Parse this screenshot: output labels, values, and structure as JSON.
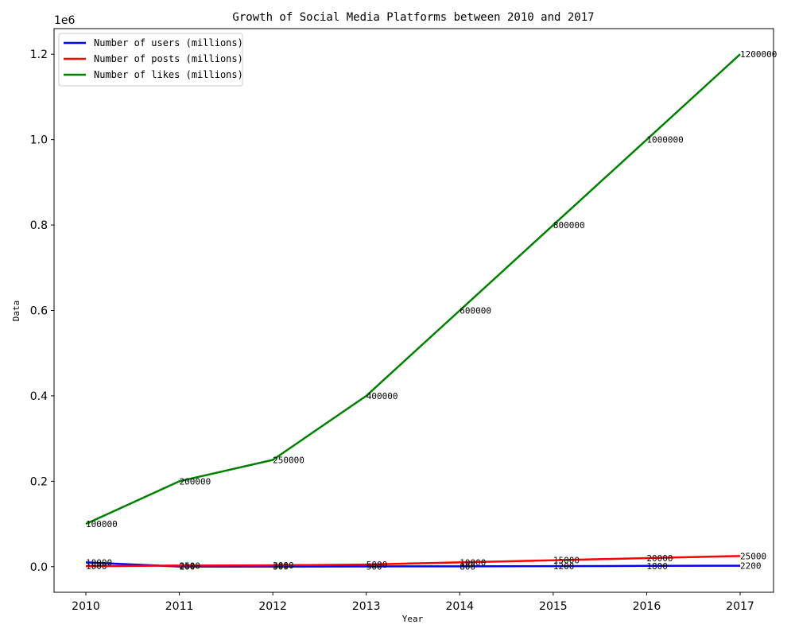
{
  "chart_data": {
    "type": "line",
    "title": "Growth of Social Media Platforms between 2010 and 2017",
    "xlabel": "Year",
    "ylabel": "Data",
    "y_offset_label": "1e6",
    "x": [
      "2010",
      "2011",
      "2012",
      "2013",
      "2014",
      "2015",
      "2016",
      "2017"
    ],
    "ylim": [
      -60000,
      1260000
    ],
    "yticks": [
      0,
      200000,
      400000,
      600000,
      800000,
      1000000,
      1200000
    ],
    "ytick_labels": [
      "0.0",
      "0.2",
      "0.4",
      "0.6",
      "0.8",
      "1.0",
      "1.2"
    ],
    "grid": false,
    "legend_position": "top-left",
    "series": [
      {
        "name": "Number of users (millions)",
        "color": "#0000ff",
        "values": [
          10000,
          200,
          300,
          500,
          800,
          1200,
          1800,
          2200
        ]
      },
      {
        "name": "Number of posts (millions)",
        "color": "#ff0000",
        "values": [
          1000,
          2500,
          3000,
          5000,
          10000,
          15000,
          20000,
          25000
        ]
      },
      {
        "name": "Number of likes (millions)",
        "color": "#008000",
        "values": [
          100000,
          200000,
          250000,
          400000,
          600000,
          800000,
          1000000,
          1200000
        ]
      }
    ]
  }
}
